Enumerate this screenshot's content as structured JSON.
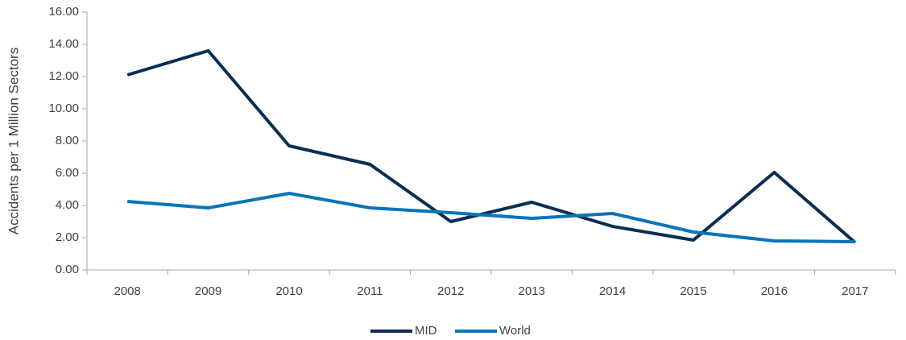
{
  "chart_data": {
    "type": "line",
    "ylabel": "Accidents per 1 Million Sectors",
    "categories": [
      "2008",
      "2009",
      "2010",
      "2011",
      "2012",
      "2013",
      "2014",
      "2015",
      "2016",
      "2017"
    ],
    "series": [
      {
        "name": "MID",
        "color": "#0b2d52",
        "values": [
          12.1,
          13.6,
          7.7,
          6.55,
          3.0,
          4.2,
          2.7,
          1.85,
          6.05,
          1.7
        ]
      },
      {
        "name": "World",
        "color": "#0a74b9",
        "values": [
          4.25,
          3.85,
          4.75,
          3.85,
          3.55,
          3.2,
          3.5,
          2.35,
          1.8,
          1.75
        ]
      }
    ],
    "ylim": [
      0,
      16
    ],
    "yticks": [
      {
        "value": 0,
        "label": "0.00"
      },
      {
        "value": 2,
        "label": "2.00"
      },
      {
        "value": 4,
        "label": "4.00"
      },
      {
        "value": 6,
        "label": "6.00"
      },
      {
        "value": 8,
        "label": "8.00"
      },
      {
        "value": 10,
        "label": "10.00"
      },
      {
        "value": 12,
        "label": "12.00"
      },
      {
        "value": 14,
        "label": "14.00"
      },
      {
        "value": 16,
        "label": "16.00"
      }
    ],
    "legend": "bottom"
  }
}
